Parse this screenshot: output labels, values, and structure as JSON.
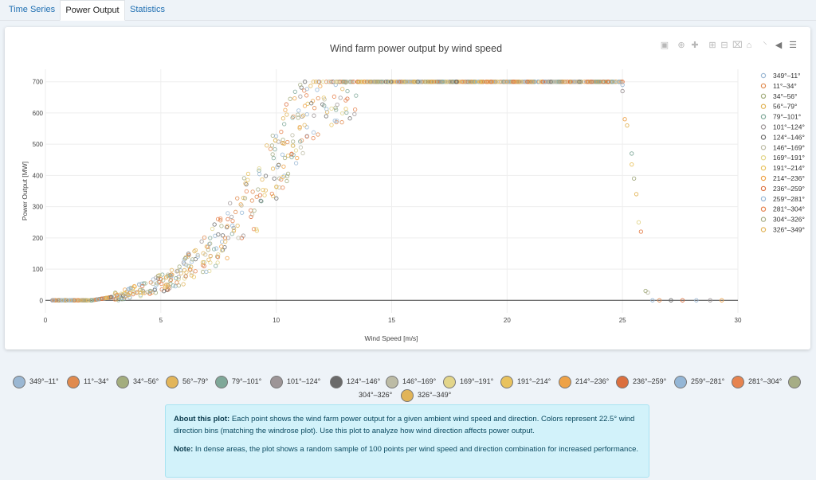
{
  "tabs": [
    {
      "label": "Time Series",
      "active": false
    },
    {
      "label": "Power Output",
      "active": true
    },
    {
      "label": "Statistics",
      "active": false
    }
  ],
  "modebar_icons": [
    "camera-icon",
    "zoom-icon",
    "pan-icon",
    "zoom-in-icon",
    "zoom-out-icon",
    "autoscale-icon",
    "home-icon",
    "spike-lines-icon",
    "hover-closest-icon",
    "hover-compare-icon"
  ],
  "chart_data": {
    "type": "scatter",
    "title": "Wind farm power output by wind speed",
    "xlabel": "Wind Speed [m/s]",
    "ylabel": "Power Output [MW]",
    "xlim": [
      0,
      30
    ],
    "ylim": [
      -40,
      740
    ],
    "xticks": [
      0,
      5,
      10,
      15,
      20,
      25,
      30
    ],
    "yticks": [
      0,
      100,
      200,
      300,
      400,
      500,
      600,
      700
    ],
    "grid": true,
    "legend_position": "right",
    "curve": {
      "description_points_x": [
        0,
        2,
        3,
        4,
        5,
        6,
        7,
        8,
        9,
        10,
        11,
        12,
        13,
        14,
        25,
        25.5,
        26,
        29.5
      ],
      "power_mid_y": [
        0,
        0,
        12,
        30,
        55,
        95,
        150,
        225,
        320,
        440,
        580,
        680,
        700,
        700,
        700,
        400,
        0,
        0
      ]
    },
    "series": [
      {
        "name": "349°–11°",
        "color": "#9ab7d3"
      },
      {
        "name": "11°–34°",
        "color": "#e08a4e"
      },
      {
        "name": "34°–56°",
        "color": "#a3ad7e"
      },
      {
        "name": "56°–79°",
        "color": "#e2b55a"
      },
      {
        "name": "79°–101°",
        "color": "#7fa899"
      },
      {
        "name": "101°–124°",
        "color": "#9d9597"
      },
      {
        "name": "124°–146°",
        "color": "#6a6a6a"
      },
      {
        "name": "146°–169°",
        "color": "#bcbba5"
      },
      {
        "name": "169°–191°",
        "color": "#e2d58a"
      },
      {
        "name": "191°–214°",
        "color": "#e8c25e"
      },
      {
        "name": "214°–236°",
        "color": "#eea247"
      },
      {
        "name": "236°–259°",
        "color": "#db6f3e"
      },
      {
        "name": "259°–281°",
        "color": "#94b6d6"
      },
      {
        "name": "281°–304°",
        "color": "#e6834f"
      },
      {
        "name": "304°–326°",
        "color": "#a6ad85"
      },
      {
        "name": "326°–349°",
        "color": "#e1b458"
      }
    ]
  },
  "info": {
    "about_label": "About this plot:",
    "about_text": " Each point shows the wind farm power output for a given ambient wind speed and direction. Colors represent 22.5° wind direction bins (matching the windrose plot). Use this plot to analyze how wind direction affects power output.",
    "note_label": "Note:",
    "note_text": " In dense areas, the plot shows a random sample of 100 points per wind speed and direction combination for increased performance."
  }
}
